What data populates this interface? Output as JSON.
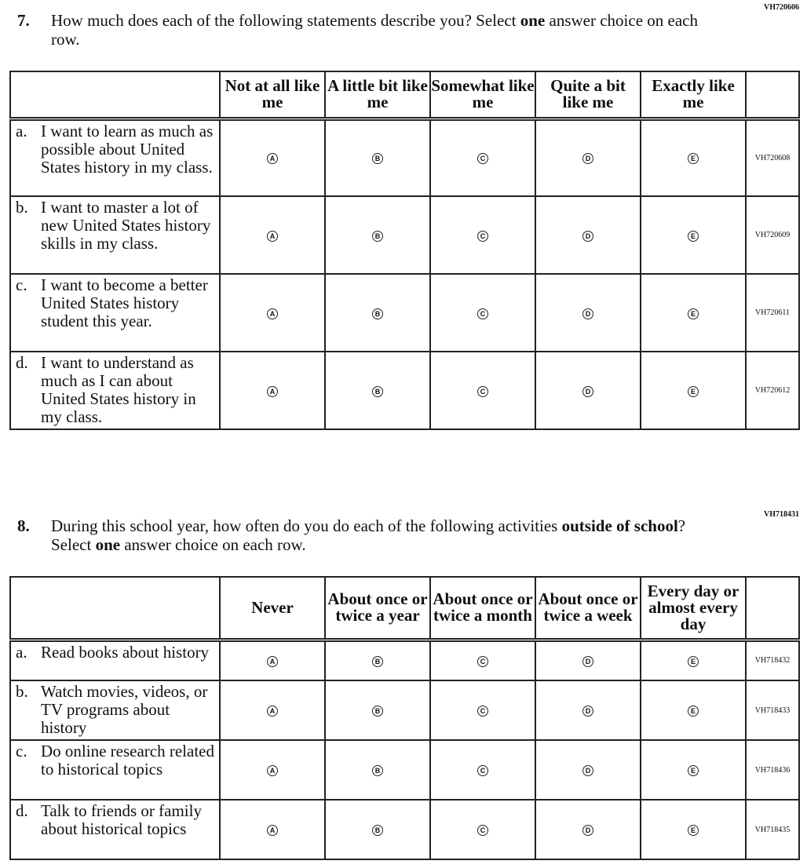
{
  "q7": {
    "code": "VH720606",
    "number": "7.",
    "prompt_before": "How much does each of the following statements describe you? Select ",
    "prompt_bold": "one",
    "prompt_after": " answer choice on each row.",
    "columns": [
      "Not at all like me",
      "A little bit like me",
      "Somewhat like me",
      "Quite a bit like me",
      "Exactly like me"
    ],
    "rows": [
      {
        "letter": "a.",
        "text": "I want to learn as much as possible about United States history in my class.",
        "id": "VH720608"
      },
      {
        "letter": "b.",
        "text": "I want to master a lot of new United States history skills in my class.",
        "id": "VH720609"
      },
      {
        "letter": "c.",
        "text": "I want to become a better United States history student this year.",
        "id": "VH720611"
      },
      {
        "letter": "d.",
        "text": "I want to understand as much as I can about United States history in my class.",
        "id": "VH720612"
      }
    ]
  },
  "q8": {
    "code": "VH718431",
    "number": "8.",
    "prompt_before": "During this school year, how often do you do each of the following activities ",
    "prompt_bold": "outside of school",
    "prompt_mid": "? Select ",
    "prompt_bold2": "one",
    "prompt_after": " answer choice on each row.",
    "columns": [
      "Never",
      "About once or twice a year",
      "About once or twice a month",
      "About once or twice a week",
      "Every day or almost every day"
    ],
    "rows": [
      {
        "letter": "a.",
        "text": "Read books about history",
        "id": "VH718432"
      },
      {
        "letter": "b.",
        "text": "Watch movies, videos, or TV programs about history",
        "id": "VH718433"
      },
      {
        "letter": "c.",
        "text": "Do online research related to historical topics",
        "id": "VH718436"
      },
      {
        "letter": "d.",
        "text": "Talk to friends or family about historical topics",
        "id": "VH718435"
      }
    ]
  },
  "bubbles": [
    "A",
    "B",
    "C",
    "D",
    "E"
  ]
}
